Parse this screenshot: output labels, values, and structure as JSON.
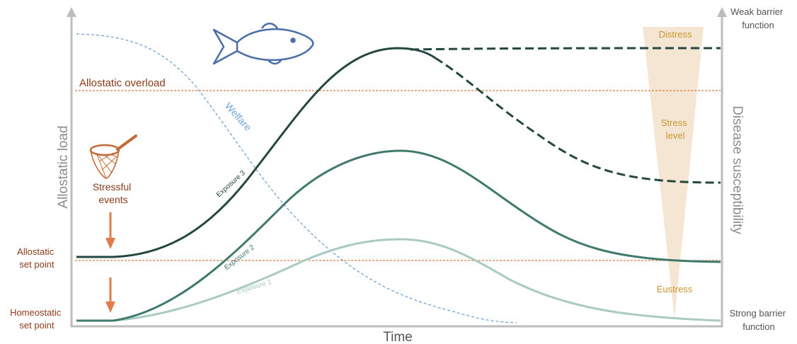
{
  "axes": {
    "left_label": "Allostatic load",
    "right_label": "Disease susceptibility",
    "x_label": "Time",
    "right_top": [
      "Weak barrier",
      "function"
    ],
    "right_bottom": [
      "Strong barrier",
      "function"
    ]
  },
  "thresholds": {
    "overload": "Allostatic overload",
    "set_point": [
      "Allostatic",
      "set point"
    ],
    "homeostatic": [
      "Homeostatic",
      "set point"
    ]
  },
  "stress": {
    "events": [
      "Stressful",
      "events"
    ],
    "distress": "Distress",
    "level": [
      "Stress",
      "level"
    ],
    "eustress": "Eustress"
  },
  "curves": {
    "welfare": "Welfare",
    "exposure1": "Exposure 1",
    "exposure2": "Exposure 2",
    "exposure3": "Exposure 3"
  },
  "icons": [
    "fish-icon",
    "landing-net-icon",
    "down-arrow-icon"
  ],
  "colors": {
    "axis": "#bdbdbd",
    "threshold": "#e07b4a",
    "label_brown": "#8b3a1a",
    "stress_gold": "#c9962e",
    "triangle": "#f5e6d3",
    "exposure1": "#a9cbbf",
    "exposure2": "#3f7a6c",
    "exposure3": "#24483f",
    "welfare": "#6fa3d8",
    "fish": "#4b6ea8"
  }
}
